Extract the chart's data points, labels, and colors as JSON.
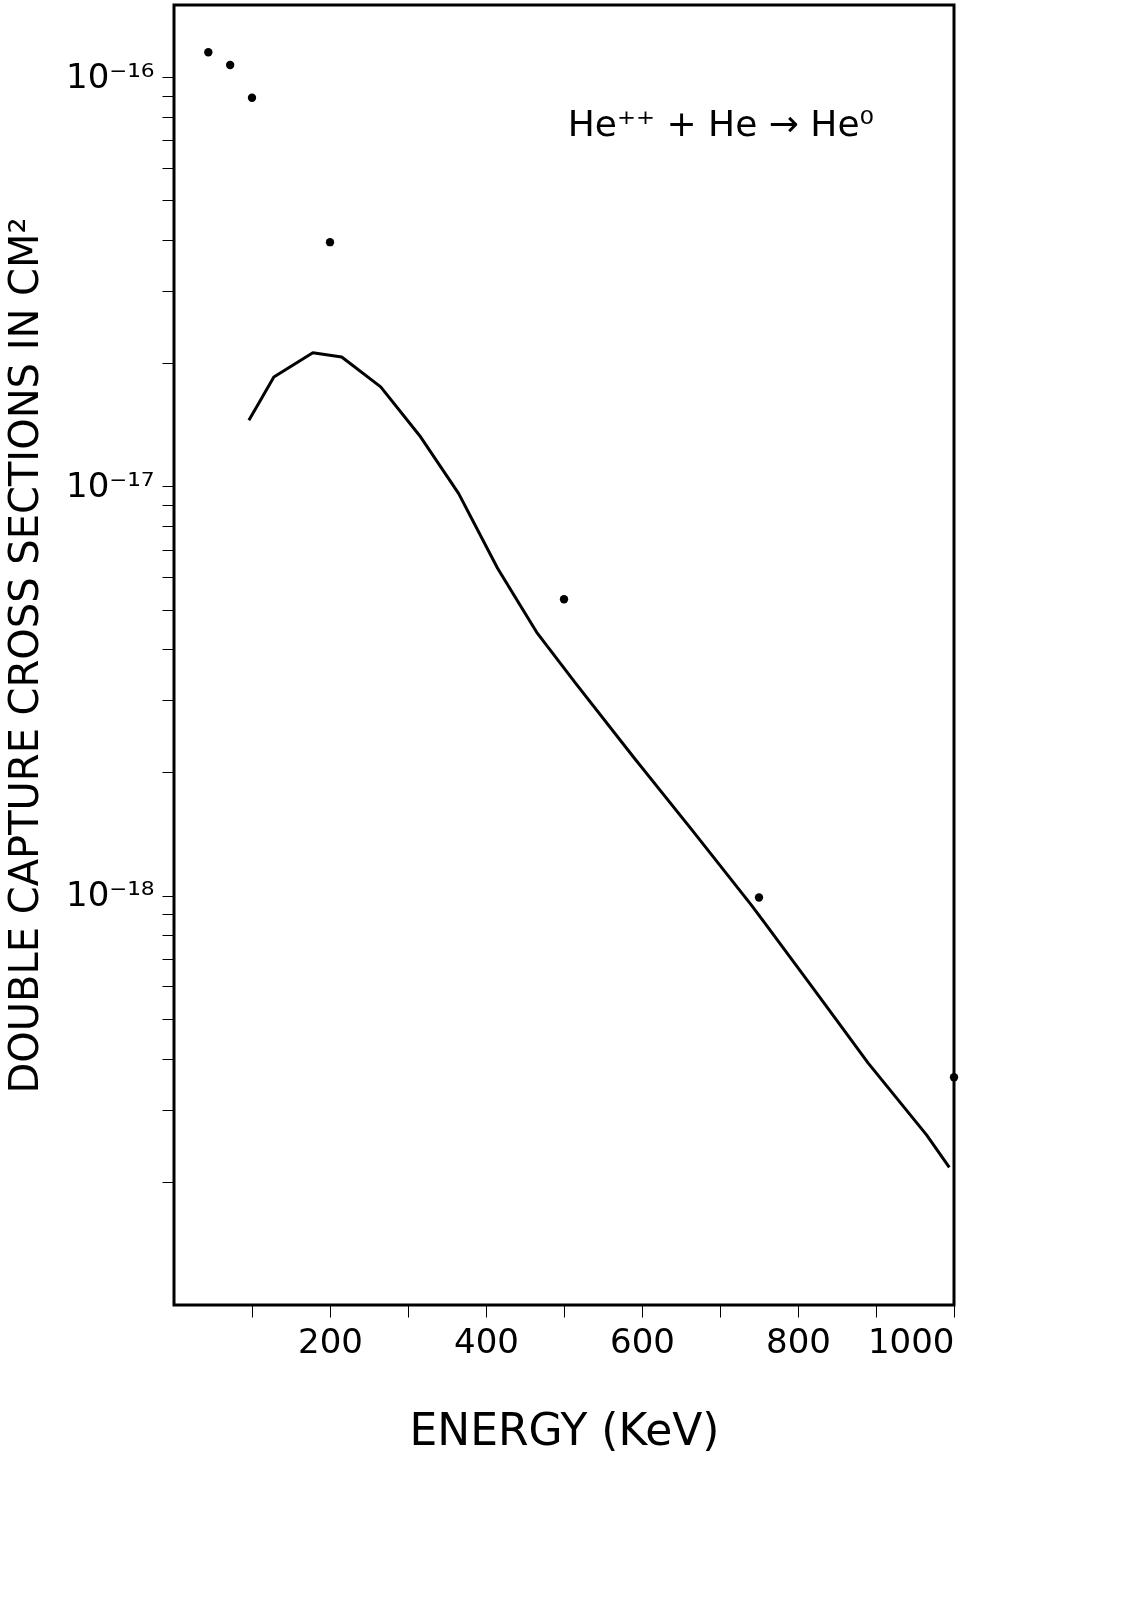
{
  "chart_data": {
    "type": "scatter",
    "xlabel": "ENERGY (KeV)",
    "ylabel": "DOUBLE CAPTURE CROSS SECTIONS IN CM²",
    "annotations": [
      "He⁺⁺ + He → He⁰"
    ],
    "log": "y",
    "grid": false,
    "line_style": "solid",
    "xlim": [
      0,
      1000
    ],
    "xticks": [
      {
        "value": 100,
        "label": null
      },
      200,
      {
        "value": 300,
        "label": null
      },
      400,
      {
        "value": 500,
        "label": null
      },
      600,
      {
        "value": 700,
        "label": null
      },
      800,
      {
        "value": 900,
        "label": null
      },
      1000
    ],
    "ylim": [
      1e-19,
      1.5e-16
    ],
    "yticks": [
      {
        "value": 2e-19,
        "label": null
      },
      {
        "value": 3e-19,
        "label": null
      },
      {
        "value": 4e-19,
        "label": null
      },
      {
        "value": 5e-19,
        "label": null
      },
      {
        "value": 6e-19,
        "label": null
      },
      {
        "value": 7e-19,
        "label": null
      },
      {
        "value": 8e-19,
        "label": null
      },
      {
        "value": 9e-19,
        "label": null
      },
      {
        "value": 1e-18,
        "label": "10⁻¹⁸"
      },
      {
        "value": 2e-18,
        "label": null
      },
      {
        "value": 3e-18,
        "label": null
      },
      {
        "value": 4e-18,
        "label": null
      },
      {
        "value": 5e-18,
        "label": null
      },
      {
        "value": 6e-18,
        "label": null
      },
      {
        "value": 7e-18,
        "label": null
      },
      {
        "value": 8e-18,
        "label": null
      },
      {
        "value": 9e-18,
        "label": null
      },
      {
        "value": 1e-17,
        "label": "10⁻¹⁷"
      },
      {
        "value": 2e-17,
        "label": null
      },
      {
        "value": 3e-17,
        "label": null
      },
      {
        "value": 4e-17,
        "label": null
      },
      {
        "value": 5e-17,
        "label": null
      },
      {
        "value": 6e-17,
        "label": null
      },
      {
        "value": 7e-17,
        "label": null
      },
      {
        "value": 8e-17,
        "label": null
      },
      {
        "value": 9e-17,
        "label": null
      },
      {
        "value": 1e-16,
        "label": "10⁻¹⁶"
      }
    ],
    "series": [
      {
        "marker": "circle",
        "color": "#000000",
        "x": [
          44,
          72,
          100,
          200,
          500,
          750,
          1000
        ],
        "values": [
          1.15e-16,
          1.07e-16,
          8.9e-17,
          3.95e-17,
          5.3e-18,
          9.9e-19,
          3.6e-19
        ]
      },
      {
        "type": "line",
        "marker": "none",
        "color": "#000000",
        "x": [
          96,
          128,
          178,
          215,
          265,
          315,
          365,
          415,
          465,
          515,
          590,
          665,
          740,
          815,
          890,
          965,
          994
        ],
        "values": [
          1.45e-17,
          1.85e-17,
          2.12e-17,
          2.07e-17,
          1.75e-17,
          1.33e-17,
          9.6e-18,
          6.3e-18,
          4.4e-18,
          3.3e-18,
          2.17e-18,
          1.44e-18,
          9.5e-19,
          6.1e-19,
          3.9e-19,
          2.6e-19,
          2.17e-19
        ]
      }
    ]
  }
}
